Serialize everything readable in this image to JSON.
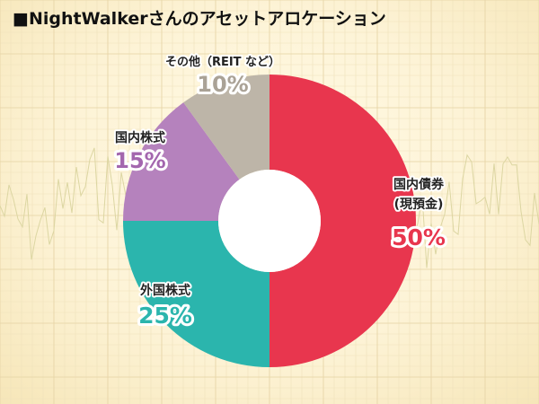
{
  "title": "■NightWalkerさんのアセットアロケーション",
  "chart_data": {
    "type": "pie",
    "donut": true,
    "categories": [
      "国内債券(現預金)",
      "外国株式",
      "国内株式",
      "その他（REIT など）"
    ],
    "values": [
      50,
      25,
      15,
      10
    ],
    "slices": [
      {
        "label_lines": [
          "国内債券",
          "(現預金)"
        ],
        "pct_text": "50%",
        "color": "#e8364e",
        "pct_color": "#e8364e"
      },
      {
        "label_lines": [
          "外国株式"
        ],
        "pct_text": "25%",
        "color": "#2bb5ad",
        "pct_color": "#2bb5ad"
      },
      {
        "label_lines": [
          "国内株式"
        ],
        "pct_text": "15%",
        "color": "#b582bd",
        "pct_color": "#a366ae"
      },
      {
        "label_lines": [
          "その他（REIT など）"
        ],
        "pct_text": "10%",
        "color": "#bdb5a8",
        "pct_color": "#aaa296"
      }
    ]
  }
}
